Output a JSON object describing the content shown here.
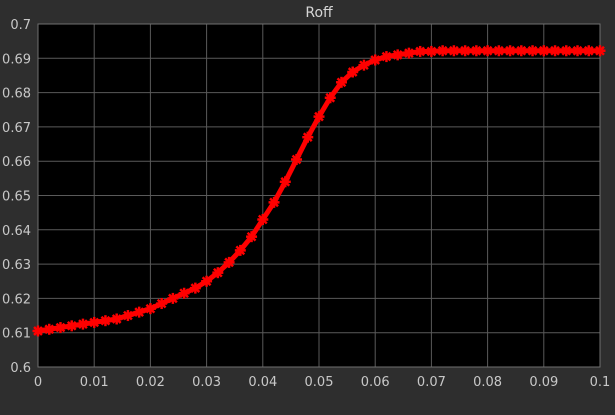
{
  "chart_data": {
    "type": "line",
    "title": "Roff",
    "xlabel": "",
    "ylabel": "",
    "xlim": [
      0,
      0.1
    ],
    "ylim": [
      0.6,
      0.7
    ],
    "grid": true,
    "x_ticks": [
      "0",
      "0.01",
      "0.02",
      "0.03",
      "0.04",
      "0.05",
      "0.06",
      "0.07",
      "0.08",
      "0.09",
      "0.1"
    ],
    "y_ticks": [
      "0.6",
      "0.61",
      "0.62",
      "0.63",
      "0.64",
      "0.65",
      "0.66",
      "0.67",
      "0.68",
      "0.69",
      "0.7"
    ],
    "colors": {
      "background": "#2e2e2e",
      "plot_area": "#000000",
      "grid": "#5a5a5a",
      "series": "#ff0000"
    },
    "series": [
      {
        "marker": "star",
        "x": [
          0,
          0.002,
          0.004,
          0.006,
          0.008,
          0.01,
          0.012,
          0.014,
          0.016,
          0.018,
          0.02,
          0.022,
          0.024,
          0.026,
          0.028,
          0.03,
          0.032,
          0.034,
          0.036,
          0.038,
          0.04,
          0.042,
          0.044,
          0.046,
          0.048,
          0.05,
          0.052,
          0.054,
          0.056,
          0.058,
          0.06,
          0.062,
          0.064,
          0.066,
          0.068,
          0.07,
          0.072,
          0.074,
          0.076,
          0.078,
          0.08,
          0.082,
          0.084,
          0.086,
          0.088,
          0.09,
          0.092,
          0.094,
          0.096,
          0.098,
          0.1
        ],
        "y": [
          0.6105,
          0.611,
          0.6115,
          0.612,
          0.6125,
          0.613,
          0.6135,
          0.614,
          0.615,
          0.616,
          0.617,
          0.6185,
          0.62,
          0.6215,
          0.623,
          0.625,
          0.6275,
          0.6305,
          0.634,
          0.638,
          0.643,
          0.648,
          0.654,
          0.6605,
          0.667,
          0.673,
          0.6785,
          0.683,
          0.686,
          0.688,
          0.6895,
          0.6905,
          0.691,
          0.6915,
          0.692,
          0.692,
          0.6922,
          0.6922,
          0.6922,
          0.6922,
          0.6922,
          0.6922,
          0.6922,
          0.6922,
          0.6922,
          0.6922,
          0.6922,
          0.6922,
          0.6922,
          0.6922,
          0.6922
        ]
      }
    ]
  }
}
